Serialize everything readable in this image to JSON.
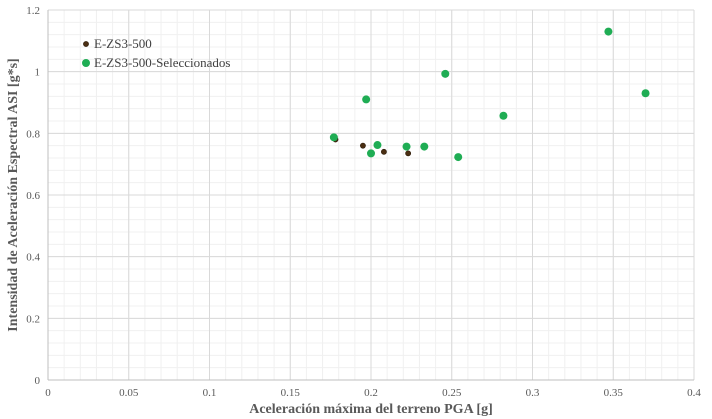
{
  "chart_data": {
    "type": "scatter",
    "title": "",
    "xlabel": "Aceleración máxima del terreno PGA [g]",
    "ylabel": "Intensidad de Aceleración Espectral ASI [g*s]",
    "xlim": [
      0,
      0.4
    ],
    "ylim": [
      0,
      1.2
    ],
    "x_ticks": [
      "0",
      "0.05",
      "0.1",
      "0.15",
      "0.2",
      "0.25",
      "0.3",
      "0.35",
      "0.4"
    ],
    "y_ticks": [
      "0",
      "0.2",
      "0.4",
      "0.6",
      "0.8",
      "1",
      "1.2"
    ],
    "grid": true,
    "legend_position": "top-left",
    "series": [
      {
        "name": "E-ZS3-500",
        "color": "#4a2e12",
        "marker": "small-circle",
        "points": [
          {
            "x": 0.178,
            "y": 0.78
          },
          {
            "x": 0.195,
            "y": 0.76
          },
          {
            "x": 0.208,
            "y": 0.74
          },
          {
            "x": 0.223,
            "y": 0.735
          }
        ]
      },
      {
        "name": "E-ZS3-500-Seleccionados",
        "color": "#1fad54",
        "marker": "circle",
        "points": [
          {
            "x": 0.177,
            "y": 0.787
          },
          {
            "x": 0.197,
            "y": 0.91
          },
          {
            "x": 0.2,
            "y": 0.735
          },
          {
            "x": 0.204,
            "y": 0.762
          },
          {
            "x": 0.222,
            "y": 0.757
          },
          {
            "x": 0.233,
            "y": 0.757
          },
          {
            "x": 0.246,
            "y": 0.993
          },
          {
            "x": 0.254,
            "y": 0.723
          },
          {
            "x": 0.282,
            "y": 0.857
          },
          {
            "x": 0.347,
            "y": 1.13
          },
          {
            "x": 0.37,
            "y": 0.93
          }
        ]
      }
    ]
  }
}
